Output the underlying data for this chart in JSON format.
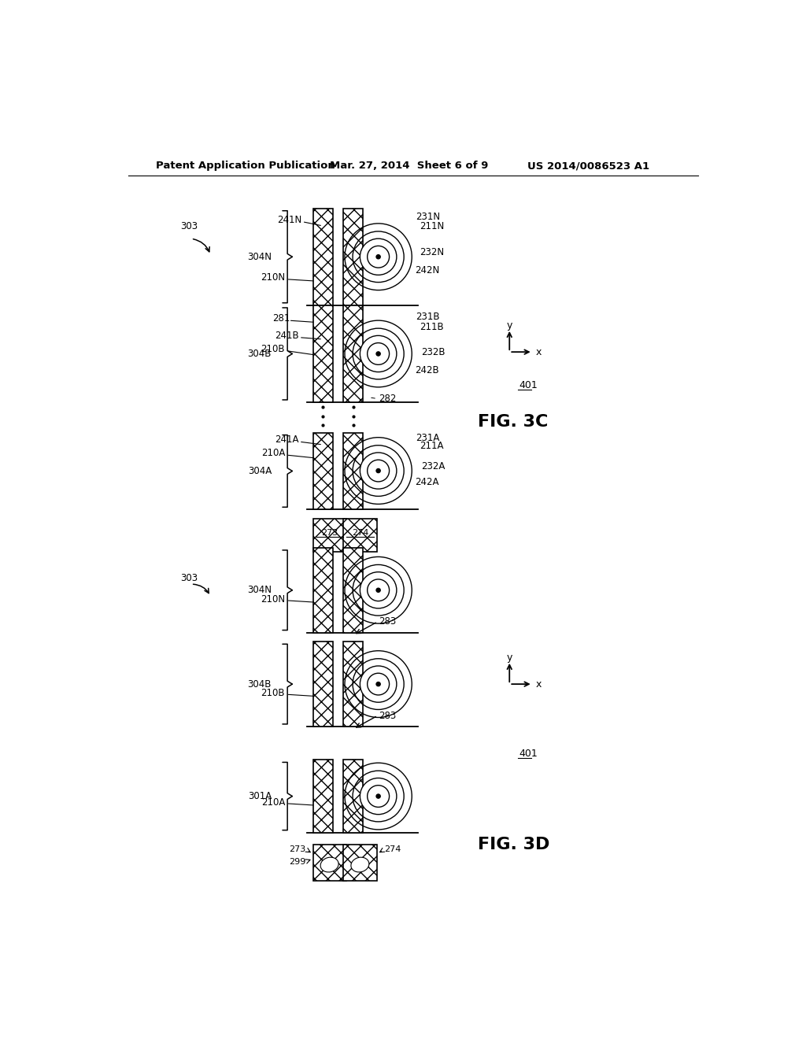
{
  "header_left": "Patent Application Publication",
  "header_mid": "Mar. 27, 2014  Sheet 6 of 9",
  "header_right": "US 2014/0086523 A1",
  "fig3c_label": "FIG. 3C",
  "fig3d_label": "FIG. 3D",
  "background": "#ffffff"
}
